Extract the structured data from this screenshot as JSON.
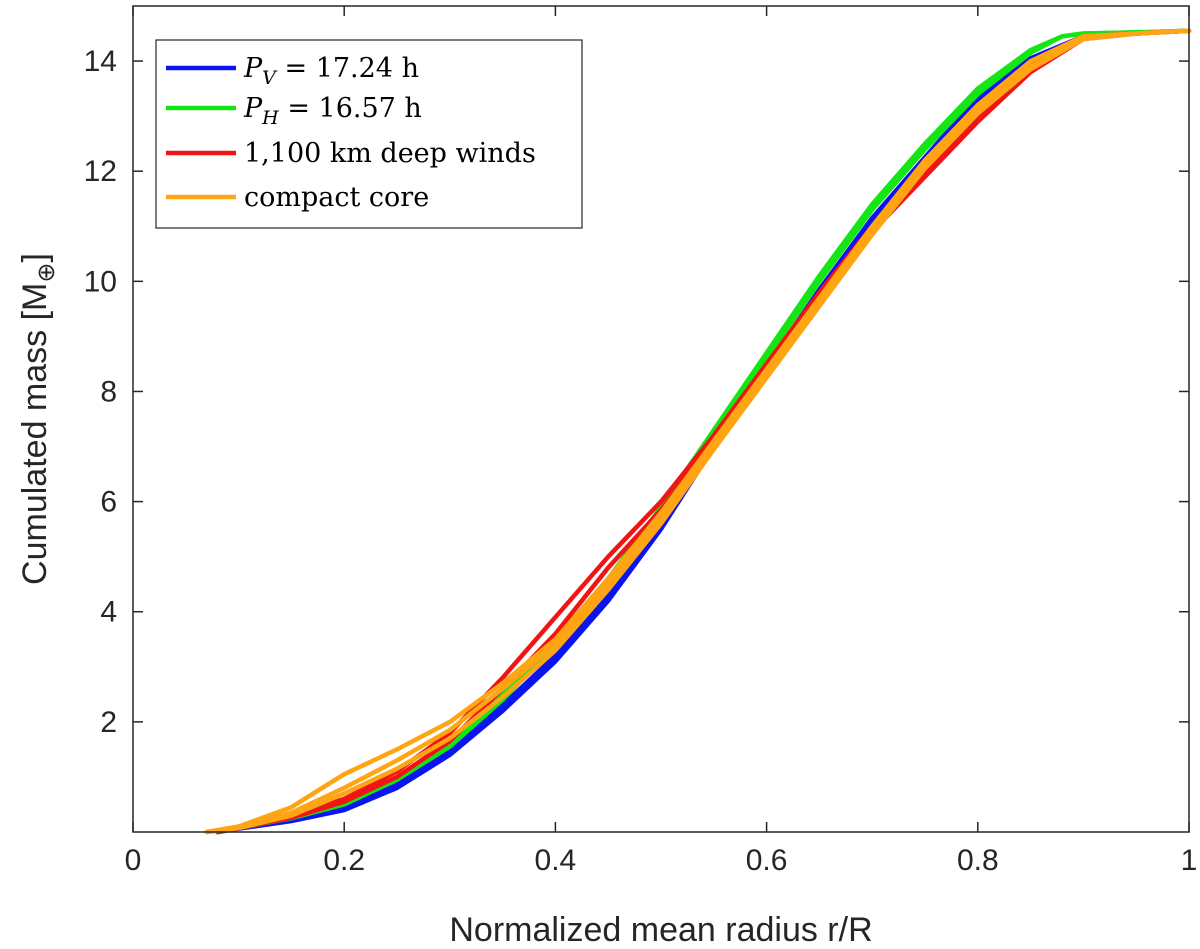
{
  "chart_data": {
    "type": "line",
    "title": "",
    "xlabel": "Normalized mean radius r/R",
    "ylabel": "Cumulated mass [M",
    "ylabel_symbol": "⊕",
    "ylabel_close": "]",
    "xlim": [
      0,
      1
    ],
    "ylim": [
      0,
      15
    ],
    "xticks": [
      0,
      0.2,
      0.4,
      0.6,
      0.8,
      1
    ],
    "xtick_labels": [
      "0",
      "0.2",
      "0.4",
      "0.6",
      "0.8",
      "1"
    ],
    "yticks": [
      2,
      4,
      6,
      8,
      10,
      12,
      14
    ],
    "ytick_labels": [
      "2",
      "4",
      "6",
      "8",
      "10",
      "12",
      "14"
    ],
    "grid": false,
    "legend_position": "top-left",
    "series": [
      {
        "name": "P_V = 17.24 h",
        "legend": {
          "sym": "P",
          "sub": "V",
          "rest": " = 17.24 h"
        },
        "color": "#0a14f0",
        "curves": [
          {
            "x": [
              0.08,
              0.1,
              0.15,
              0.2,
              0.25,
              0.3,
              0.35,
              0.4,
              0.45,
              0.5,
              0.55,
              0.6,
              0.65,
              0.7,
              0.75,
              0.8,
              0.85,
              0.9,
              0.95,
              1.0
            ],
            "y": [
              0.0,
              0.06,
              0.2,
              0.4,
              0.8,
              1.4,
              2.2,
              3.1,
              4.2,
              5.5,
              7.0,
              8.4,
              9.8,
              11.1,
              12.2,
              13.3,
              14.0,
              14.45,
              14.5,
              14.55
            ]
          },
          {
            "x": [
              0.08,
              0.1,
              0.15,
              0.2,
              0.25,
              0.3,
              0.35,
              0.4,
              0.45,
              0.5,
              0.55,
              0.6,
              0.65,
              0.7,
              0.75,
              0.8,
              0.85,
              0.9,
              0.95,
              1.0
            ],
            "y": [
              0.0,
              0.07,
              0.22,
              0.45,
              0.86,
              1.48,
              2.3,
              3.2,
              4.3,
              5.6,
              7.05,
              8.45,
              9.85,
              11.15,
              12.25,
              13.35,
              14.05,
              14.45,
              14.5,
              14.55
            ]
          }
        ]
      },
      {
        "name": "P_H = 16.57 h",
        "legend": {
          "sym": "P",
          "sub": "H",
          "rest": " = 16.57 h"
        },
        "color": "#14e614",
        "curves": [
          {
            "x": [
              0.08,
              0.1,
              0.15,
              0.2,
              0.25,
              0.3,
              0.35,
              0.4,
              0.45,
              0.5,
              0.55,
              0.6,
              0.65,
              0.7,
              0.75,
              0.8,
              0.85,
              0.88,
              0.9,
              0.95,
              1.0
            ],
            "y": [
              0.0,
              0.08,
              0.28,
              0.55,
              1.0,
              1.6,
              2.5,
              3.5,
              4.6,
              5.9,
              7.3,
              8.7,
              10.1,
              11.4,
              12.5,
              13.5,
              14.2,
              14.45,
              14.5,
              14.52,
              14.55
            ]
          },
          {
            "x": [
              0.08,
              0.1,
              0.15,
              0.2,
              0.25,
              0.3,
              0.35,
              0.4,
              0.45,
              0.5,
              0.55,
              0.6,
              0.65,
              0.7,
              0.75,
              0.8,
              0.85,
              0.88,
              0.9,
              0.95,
              1.0
            ],
            "y": [
              0.0,
              0.07,
              0.25,
              0.5,
              0.95,
              1.55,
              2.4,
              3.4,
              4.5,
              5.8,
              7.2,
              8.6,
              10.0,
              11.3,
              12.4,
              13.4,
              14.15,
              14.45,
              14.5,
              14.52,
              14.55
            ]
          }
        ]
      },
      {
        "name": "1,100 km deep winds",
        "legend": {
          "sym": "",
          "sub": "",
          "rest": "1,100 km deep winds"
        },
        "color": "#f01414",
        "curves": [
          {
            "x": [
              0.08,
              0.1,
              0.15,
              0.2,
              0.25,
              0.3,
              0.35,
              0.4,
              0.45,
              0.5,
              0.55,
              0.6,
              0.65,
              0.7,
              0.75,
              0.8,
              0.85,
              0.9,
              0.95,
              1.0
            ],
            "y": [
              0.0,
              0.08,
              0.3,
              0.6,
              1.1,
              1.8,
              2.8,
              3.9,
              5.0,
              6.0,
              7.2,
              8.5,
              9.8,
              11.0,
              12.0,
              13.0,
              13.9,
              14.45,
              14.5,
              14.55
            ]
          },
          {
            "x": [
              0.08,
              0.1,
              0.15,
              0.2,
              0.25,
              0.3,
              0.35,
              0.4,
              0.45,
              0.5,
              0.55,
              0.6,
              0.65,
              0.7,
              0.75,
              0.8,
              0.85,
              0.9,
              0.95,
              1.0
            ],
            "y": [
              0.0,
              0.07,
              0.26,
              0.55,
              1.0,
              1.65,
              2.6,
              3.6,
              4.8,
              5.85,
              7.1,
              8.4,
              9.7,
              10.9,
              11.9,
              12.9,
              13.8,
              14.4,
              14.5,
              14.55
            ]
          }
        ]
      },
      {
        "name": "compact core",
        "legend": {
          "sym": "",
          "sub": "",
          "rest": "compact core"
        },
        "color": "#ffa514",
        "curves": [
          {
            "x": [
              0.07,
              0.1,
              0.15,
              0.2,
              0.25,
              0.3,
              0.35,
              0.4,
              0.45,
              0.5,
              0.55,
              0.6,
              0.65,
              0.7,
              0.75,
              0.8,
              0.85,
              0.9,
              0.95,
              1.0
            ],
            "y": [
              0.0,
              0.1,
              0.45,
              1.05,
              1.5,
              2.0,
              2.7,
              3.5,
              4.6,
              5.8,
              7.1,
              8.4,
              9.7,
              11.0,
              12.2,
              13.2,
              14.0,
              14.45,
              14.5,
              14.55
            ]
          },
          {
            "x": [
              0.07,
              0.1,
              0.15,
              0.2,
              0.25,
              0.3,
              0.35,
              0.4,
              0.45,
              0.5,
              0.55,
              0.6,
              0.65,
              0.7,
              0.75,
              0.8,
              0.85,
              0.9,
              0.95,
              1.0
            ],
            "y": [
              0.0,
              0.08,
              0.35,
              0.8,
              1.3,
              1.85,
              2.6,
              3.4,
              4.5,
              5.7,
              7.0,
              8.3,
              9.6,
              10.9,
              12.1,
              13.1,
              13.9,
              14.4,
              14.5,
              14.55
            ]
          },
          {
            "x": [
              0.07,
              0.1,
              0.15,
              0.2,
              0.25,
              0.3,
              0.35,
              0.4,
              0.45,
              0.5,
              0.55,
              0.6,
              0.65,
              0.7,
              0.75,
              0.8,
              0.85,
              0.9,
              0.95,
              1.0
            ],
            "y": [
              0.0,
              0.07,
              0.3,
              0.7,
              1.15,
              1.7,
              2.45,
              3.3,
              4.4,
              5.6,
              6.95,
              8.25,
              9.55,
              10.85,
              12.05,
              13.05,
              13.85,
              14.4,
              14.5,
              14.55
            ]
          }
        ]
      }
    ]
  }
}
